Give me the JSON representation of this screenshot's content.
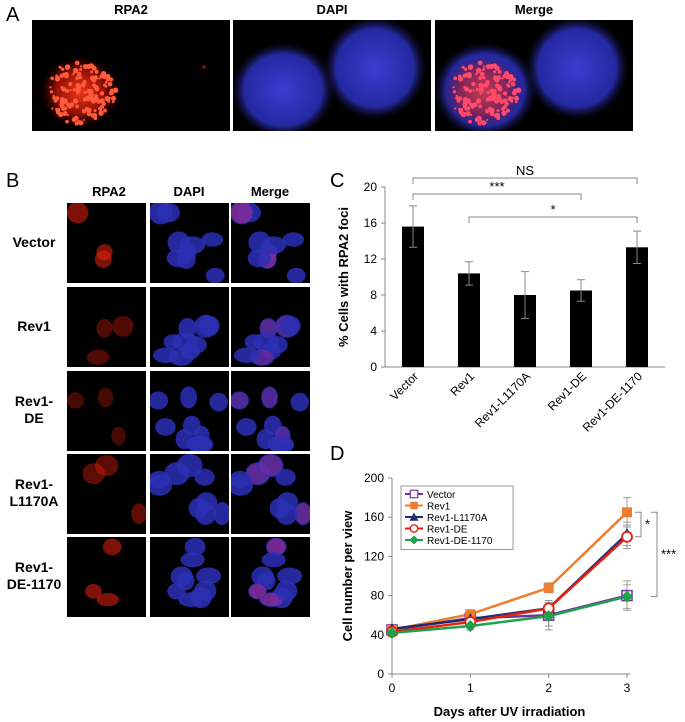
{
  "panels": {
    "A": "A",
    "B": "B",
    "C": "C",
    "D": "D"
  },
  "panelA": {
    "channels": [
      "RPA2",
      "DAPI",
      "Merge"
    ]
  },
  "panelB": {
    "channels": [
      "RPA2",
      "DAPI",
      "Merge"
    ],
    "rows": [
      {
        "label": "Vector",
        "red_intensity": 0.55
      },
      {
        "label": "Rev1",
        "red_intensity": 0.35
      },
      {
        "label": "Rev1-\nDE",
        "red_intensity": 0.3
      },
      {
        "label": "Rev1-\nL1170A",
        "red_intensity": 0.4
      },
      {
        "label": "Rev1-\nDE-1170",
        "red_intensity": 0.55
      }
    ]
  },
  "colors": {
    "red": "#e8200f",
    "blue": "#2c2fb5",
    "merge": "#b02a8a"
  },
  "chart_data": [
    {
      "type": "bar",
      "panel": "C",
      "ylabel": "% Cells with RPA2 foci",
      "ylim": [
        0,
        20
      ],
      "yticks": [
        0,
        4,
        8,
        12,
        16,
        20
      ],
      "categories": [
        "Vector",
        "Rev1",
        "Rev1-L1170A",
        "Rev1-DE",
        "Rev1-DE-1170"
      ],
      "values": [
        15.6,
        10.4,
        8.0,
        8.5,
        13.3
      ],
      "errors": [
        2.3,
        1.3,
        2.6,
        1.2,
        1.8
      ],
      "bar_color": "#000000",
      "annotations": [
        {
          "from": 0,
          "to": 4,
          "label": "NS"
        },
        {
          "from": 0,
          "to": 3,
          "label": "***"
        },
        {
          "from": 1,
          "to": 4,
          "label": "*"
        }
      ]
    },
    {
      "type": "line",
      "panel": "D",
      "xlabel": "Days after UV irradiation",
      "ylabel": "Cell number per view",
      "x": [
        0,
        1,
        2,
        3
      ],
      "xlim": [
        0,
        3
      ],
      "ylim": [
        0,
        200
      ],
      "yticks": [
        0,
        40,
        80,
        120,
        160,
        200
      ],
      "legend": "top-left",
      "series": [
        {
          "name": "Vector",
          "values": [
            45,
            57,
            60,
            80
          ],
          "errors": [
            3,
            4,
            15,
            15
          ],
          "color": "#7030a0",
          "marker": "square-open"
        },
        {
          "name": "Rev1",
          "values": [
            45,
            61,
            88,
            165
          ],
          "errors": [
            3,
            4,
            5,
            15
          ],
          "color": "#ed7d31",
          "marker": "square"
        },
        {
          "name": "Rev1-L1170A",
          "values": [
            46,
            56,
            67,
            143
          ],
          "errors": [
            3,
            4,
            6,
            12
          ],
          "color": "#1f2d6e",
          "marker": "triangle"
        },
        {
          "name": "Rev1-DE",
          "values": [
            43,
            53,
            67,
            140
          ],
          "errors": [
            3,
            4,
            6,
            12
          ],
          "color": "#e8200f",
          "marker": "circle-open"
        },
        {
          "name": "Rev1-DE-1170",
          "values": [
            42,
            49,
            59,
            79
          ],
          "errors": [
            3,
            4,
            10,
            12
          ],
          "color": "#1ea14a",
          "marker": "diamond"
        }
      ],
      "annotations": [
        {
          "between": [
            "Rev1",
            "Rev1-DE"
          ],
          "label": "*"
        },
        {
          "between": [
            "Rev1",
            "Rev1-DE-1170"
          ],
          "label": "***"
        }
      ]
    }
  ]
}
